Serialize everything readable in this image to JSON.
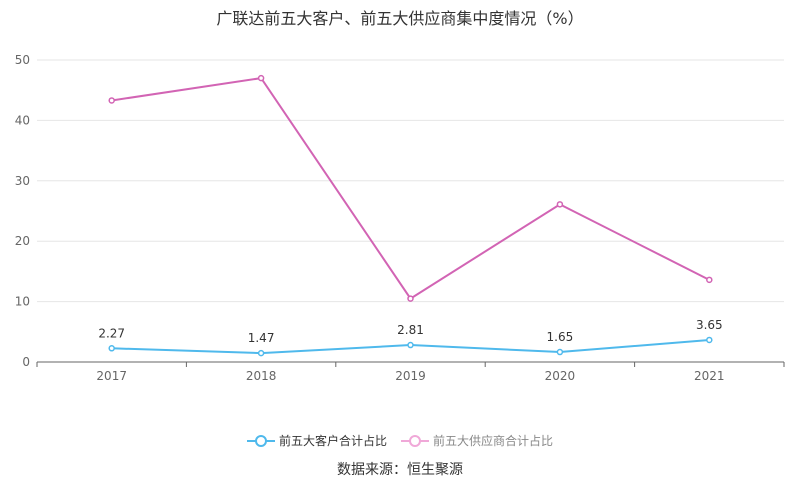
{
  "chart_data": {
    "type": "line",
    "title": "广联达前五大客户、前五大供应商集中度情况（%）",
    "categories": [
      "2017",
      "2018",
      "2019",
      "2020",
      "2021"
    ],
    "ylim": [
      0,
      50
    ],
    "yticks": [
      0,
      10,
      20,
      30,
      40,
      50
    ],
    "grid": true,
    "legend_position": "bottom",
    "series": [
      {
        "name": "前五大客户合计占比",
        "values": [
          2.27,
          1.47,
          2.81,
          1.65,
          3.65
        ],
        "value_labels": [
          "2.27",
          "1.47",
          "2.81",
          "1.65",
          "3.65"
        ],
        "color": "#4fb9ec"
      },
      {
        "name": "前五大供应商合计占比",
        "values": [
          43.3,
          47.0,
          10.5,
          26.1,
          13.6
        ],
        "color": "#d264b4"
      }
    ]
  },
  "source": "数据来源：恒生聚源"
}
